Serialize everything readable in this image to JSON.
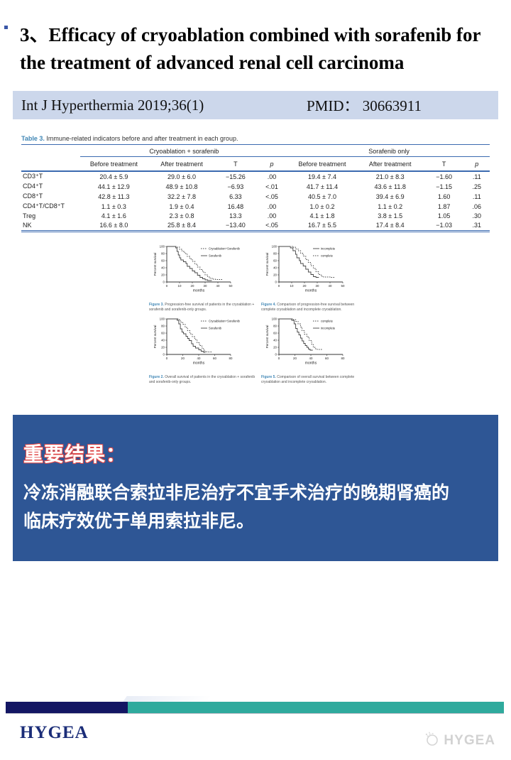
{
  "slide": {
    "title": "3、Efficacy of cryoablation combined with sorafenib for the treatment of advanced renal cell carcinoma",
    "journal": "Int J Hyperthermia 2019;36(1)",
    "pmid": "PMID： 30663911"
  },
  "table": {
    "caption_label": "Table 3.",
    "caption_text": "Immune-related indicators before and after treatment in each group.",
    "group1": "Cryoablation + sorafenib",
    "group2": "Sorafenib only",
    "subheaders": [
      "Before treatment",
      "After treatment",
      "T",
      "p"
    ],
    "rows": [
      {
        "label": "CD3⁺T",
        "g1": [
          "20.4 ± 5.9",
          "29.0 ± 6.0",
          "−15.26",
          ".00"
        ],
        "g2": [
          "19.4 ± 7.4",
          "21.0 ± 8.3",
          "−1.60",
          ".11"
        ]
      },
      {
        "label": "CD4⁺T",
        "g1": [
          "44.1 ± 12.9",
          "48.9 ± 10.8",
          "−6.93",
          "<.01"
        ],
        "g2": [
          "41.7 ± 11.4",
          "43.6 ± 11.8",
          "−1.15",
          ".25"
        ]
      },
      {
        "label": "CD8⁺T",
        "g1": [
          "42.8 ± 11.3",
          "32.2 ± 7.8",
          "6.33",
          "<.05"
        ],
        "g2": [
          "40.5 ± 7.0",
          "39.4 ± 6.9",
          "1.60",
          ".11"
        ]
      },
      {
        "label": "CD4⁺T/CD8⁺T",
        "g1": [
          "1.1 ± 0.3",
          "1.9 ± 0.4",
          "16.48",
          ".00"
        ],
        "g2": [
          "1.0 ± 0.2",
          "1.1 ± 0.2",
          "1.87",
          ".06"
        ]
      },
      {
        "label": "Treg",
        "g1": [
          "4.1 ± 1.6",
          "2.3 ± 0.8",
          "13.3",
          ".00"
        ],
        "g2": [
          "4.1 ± 1.8",
          "3.8 ± 1.5",
          "1.05",
          ".30"
        ]
      },
      {
        "label": "NK",
        "g1": [
          "16.6 ± 8.0",
          "25.8 ± 8.4",
          "−13.40",
          "<.05"
        ],
        "g2": [
          "16.7 ± 5.5",
          "17.4 ± 8.4",
          "−1.03",
          ".31"
        ]
      }
    ]
  },
  "chart_data": [
    {
      "type": "line",
      "caption_label": "Figure 3.",
      "caption_text": "Progression-free survival of patients in the cryoablation + sorafenib and sorafenib-only groups.",
      "xlabel": "months",
      "ylabel": "Percent survival",
      "xlim": [
        0,
        50
      ],
      "ylim": [
        0,
        100
      ],
      "xticks": [
        0,
        10,
        20,
        30,
        40,
        50
      ],
      "yticks": [
        0,
        20,
        40,
        60,
        80,
        100
      ],
      "series": [
        {
          "name": "Cryoablation+Sorafenib",
          "style": "dashed",
          "points": [
            [
              0,
              100
            ],
            [
              8,
              98
            ],
            [
              10,
              92
            ],
            [
              12,
              86
            ],
            [
              14,
              80
            ],
            [
              16,
              72
            ],
            [
              18,
              65
            ],
            [
              20,
              58
            ],
            [
              22,
              50
            ],
            [
              24,
              42
            ],
            [
              26,
              35
            ],
            [
              28,
              28
            ],
            [
              30,
              20
            ],
            [
              32,
              14
            ],
            [
              34,
              10
            ],
            [
              36,
              8
            ],
            [
              38,
              7
            ],
            [
              44,
              7
            ]
          ]
        },
        {
          "name": "Sorafenib",
          "style": "solid",
          "points": [
            [
              0,
              100
            ],
            [
              7,
              96
            ],
            [
              8,
              86
            ],
            [
              9,
              76
            ],
            [
              10,
              68
            ],
            [
              11,
              62
            ],
            [
              13,
              57
            ],
            [
              15,
              52
            ],
            [
              16,
              44
            ],
            [
              18,
              38
            ],
            [
              20,
              31
            ],
            [
              22,
              26
            ],
            [
              24,
              19
            ],
            [
              26,
              13
            ],
            [
              28,
              9
            ],
            [
              30,
              6
            ],
            [
              32,
              4
            ],
            [
              35,
              3
            ]
          ]
        }
      ]
    },
    {
      "type": "line",
      "caption_label": "Figure 4.",
      "caption_text": "Comparison of progression-free survival between complete cryoablation and incomplete cryoablation.",
      "xlabel": "months",
      "ylabel": "Percent survival",
      "xlim": [
        0,
        50
      ],
      "ylim": [
        0,
        100
      ],
      "xticks": [
        0,
        10,
        20,
        30,
        40,
        50
      ],
      "yticks": [
        0,
        20,
        40,
        60,
        80,
        100
      ],
      "series": [
        {
          "name": "incomplete",
          "style": "solid",
          "points": [
            [
              0,
              100
            ],
            [
              9,
              96
            ],
            [
              11,
              88
            ],
            [
              13,
              78
            ],
            [
              14,
              68
            ],
            [
              16,
              60
            ],
            [
              17,
              52
            ],
            [
              19,
              45
            ],
            [
              21,
              36
            ],
            [
              23,
              28
            ],
            [
              25,
              21
            ],
            [
              27,
              15
            ],
            [
              29,
              13
            ],
            [
              31,
              12
            ]
          ]
        },
        {
          "name": "complete",
          "style": "dashed",
          "points": [
            [
              0,
              100
            ],
            [
              11,
              98
            ],
            [
              13,
              93
            ],
            [
              15,
              88
            ],
            [
              17,
              81
            ],
            [
              19,
              73
            ],
            [
              21,
              63
            ],
            [
              23,
              55
            ],
            [
              25,
              46
            ],
            [
              27,
              38
            ],
            [
              29,
              29
            ],
            [
              31,
              21
            ],
            [
              33,
              16
            ],
            [
              35,
              14
            ],
            [
              40,
              13
            ],
            [
              44,
              13
            ]
          ]
        }
      ]
    },
    {
      "type": "line",
      "caption_label": "Figure 2.",
      "caption_text": "Overall survival of patients in the cryoablation + sorafenib and sorafenib-only groups.",
      "xlabel": "months",
      "ylabel": "Percent survival",
      "xlim": [
        0,
        80
      ],
      "ylim": [
        0,
        100
      ],
      "xticks": [
        0,
        20,
        40,
        60,
        80
      ],
      "yticks": [
        0,
        20,
        40,
        60,
        80,
        100
      ],
      "series": [
        {
          "name": "Cryoablation+Sorafenib",
          "style": "dashed",
          "points": [
            [
              0,
              100
            ],
            [
              14,
              98
            ],
            [
              17,
              91
            ],
            [
              20,
              85
            ],
            [
              23,
              76
            ],
            [
              26,
              67
            ],
            [
              29,
              58
            ],
            [
              32,
              50
            ],
            [
              35,
              42
            ],
            [
              38,
              33
            ],
            [
              41,
              25
            ],
            [
              44,
              18
            ],
            [
              46,
              12
            ],
            [
              48,
              8
            ],
            [
              50,
              7
            ],
            [
              56,
              7
            ]
          ]
        },
        {
          "name": "Sorafenib",
          "style": "solid",
          "points": [
            [
              0,
              100
            ],
            [
              13,
              96
            ],
            [
              15,
              86
            ],
            [
              17,
              72
            ],
            [
              19,
              63
            ],
            [
              21,
              58
            ],
            [
              24,
              51
            ],
            [
              26,
              45
            ],
            [
              28,
              39
            ],
            [
              31,
              30
            ],
            [
              33,
              23
            ],
            [
              36,
              18
            ],
            [
              40,
              13
            ],
            [
              43,
              9
            ],
            [
              46,
              6
            ],
            [
              48,
              5
            ]
          ]
        }
      ]
    },
    {
      "type": "line",
      "caption_label": "Figure 5.",
      "caption_text": "Comparison of overall survival between complete cryoablation and incomplete cryoablation.",
      "xlabel": "months",
      "ylabel": "Percent survival",
      "xlim": [
        0,
        80
      ],
      "ylim": [
        0,
        100
      ],
      "xticks": [
        0,
        20,
        40,
        60,
        80
      ],
      "yticks": [
        0,
        20,
        40,
        60,
        80,
        100
      ],
      "series": [
        {
          "name": "complete",
          "style": "dashed",
          "points": [
            [
              0,
              100
            ],
            [
              18,
              98
            ],
            [
              21,
              93
            ],
            [
              24,
              86
            ],
            [
              27,
              77
            ],
            [
              29,
              67
            ],
            [
              32,
              57
            ],
            [
              35,
              49
            ],
            [
              38,
              39
            ],
            [
              41,
              29
            ],
            [
              43,
              21
            ],
            [
              45,
              16
            ],
            [
              48,
              14
            ],
            [
              54,
              13
            ]
          ]
        },
        {
          "name": "incomplete",
          "style": "solid",
          "points": [
            [
              0,
              100
            ],
            [
              16,
              96
            ],
            [
              19,
              86
            ],
            [
              21,
              73
            ],
            [
              23,
              63
            ],
            [
              25,
              55
            ],
            [
              27,
              46
            ],
            [
              29,
              38
            ],
            [
              31,
              31
            ],
            [
              33,
              25
            ],
            [
              35,
              20
            ],
            [
              37,
              15
            ],
            [
              39,
              12
            ],
            [
              42,
              11
            ]
          ]
        }
      ]
    }
  ],
  "result": {
    "heading": "重要结果：",
    "body_line1": "冷冻消融联合索拉非尼治疗不宜手术治疗的晚期肾癌的",
    "body_line2": "临床疗效优于单用索拉非尼。"
  },
  "footer": {
    "brand": "HYGEA",
    "watermark": "HYGEA"
  }
}
